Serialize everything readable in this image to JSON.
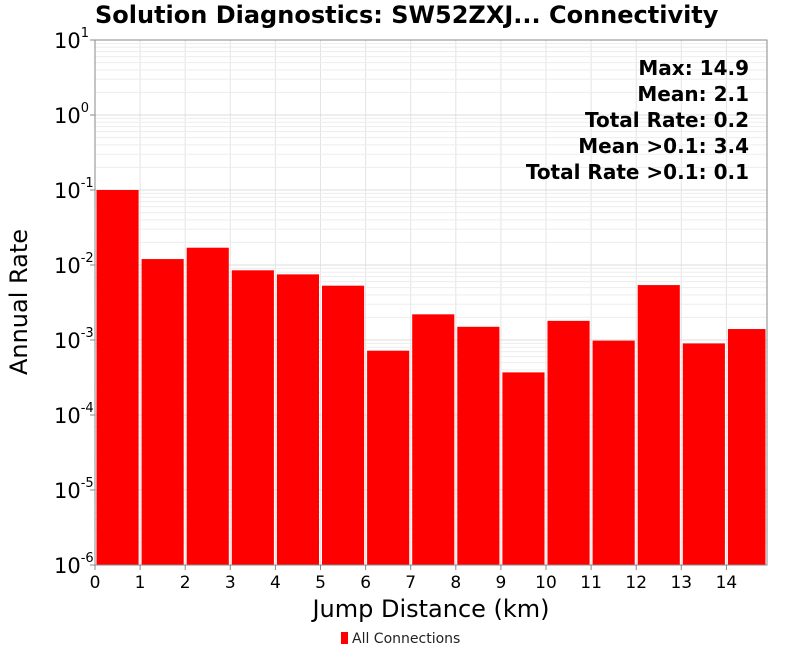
{
  "chart_data": {
    "type": "bar",
    "title": "Solution Diagnostics: SW52ZXJ... Connectivity",
    "xlabel": "Jump Distance (km)",
    "ylabel": "Annual Rate",
    "yscale": "log",
    "ylim": [
      1e-06,
      10
    ],
    "xlim": [
      0,
      14.9
    ],
    "xticks": [
      0,
      1,
      2,
      3,
      4,
      5,
      6,
      7,
      8,
      9,
      10,
      11,
      12,
      13,
      14
    ],
    "ytick_exponents": [
      1,
      0,
      -1,
      -2,
      -3,
      -4,
      -5,
      -6
    ],
    "ytick_base": "10",
    "grid": true,
    "legend": {
      "position": "bottom-center",
      "entries": [
        "All Connections"
      ]
    },
    "bar_color": "#ff0000",
    "series": [
      {
        "name": "All Connections",
        "bins": [
          {
            "x0": 0,
            "x1": 1,
            "value": 0.1
          },
          {
            "x0": 1,
            "x1": 2,
            "value": 0.012
          },
          {
            "x0": 2,
            "x1": 3,
            "value": 0.017
          },
          {
            "x0": 3,
            "x1": 4,
            "value": 0.0085
          },
          {
            "x0": 4,
            "x1": 5,
            "value": 0.0075
          },
          {
            "x0": 5,
            "x1": 6,
            "value": 0.0053
          },
          {
            "x0": 6,
            "x1": 7,
            "value": 0.00072
          },
          {
            "x0": 7,
            "x1": 8,
            "value": 0.0022
          },
          {
            "x0": 8,
            "x1": 9,
            "value": 0.0015
          },
          {
            "x0": 9,
            "x1": 10,
            "value": 0.00037
          },
          {
            "x0": 10,
            "x1": 11,
            "value": 0.0018
          },
          {
            "x0": 11,
            "x1": 12,
            "value": 0.00098
          },
          {
            "x0": 12,
            "x1": 13,
            "value": 0.0054
          },
          {
            "x0": 13,
            "x1": 14,
            "value": 0.0009
          },
          {
            "x0": 14,
            "x1": 14.9,
            "value": 0.0014
          }
        ]
      }
    ],
    "annotations": [
      "Max: 14.9",
      "Mean: 2.1",
      "Total Rate: 0.2",
      "Mean >0.1: 3.4",
      "Total Rate >0.1: 0.1"
    ]
  }
}
